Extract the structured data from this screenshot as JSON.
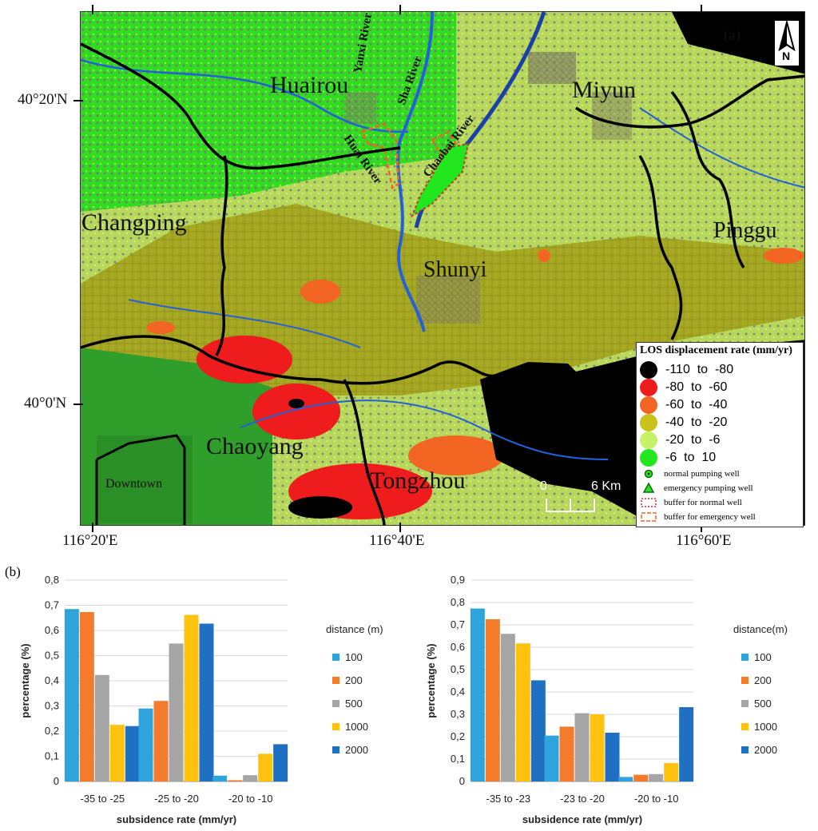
{
  "map": {
    "panel_label": "(a)",
    "north_label": "N",
    "lat_ticks": [
      "40°20'N",
      "40°0'N"
    ],
    "lon_ticks": [
      "116°20'E",
      "116°40'E",
      "116°60'E"
    ],
    "districts": [
      "Huairou",
      "Miyun",
      "Changping",
      "Pinggu",
      "Shunyi",
      "Chaoyang",
      "Tongzhou",
      "Downtown"
    ],
    "rivers": [
      "Yanxi River",
      "Sha River",
      "Huai River",
      "Chaobai River"
    ],
    "scalebar": {
      "start": "0",
      "end": "6 Km"
    },
    "legend": {
      "title": "LOS displacement rate (mm/yr)",
      "classes": [
        {
          "label": "-110  to  -80",
          "color": "#000000"
        },
        {
          "label": "-80  to  -60",
          "color": "#ee1c1c"
        },
        {
          "label": "-60  to  -40",
          "color": "#f26522"
        },
        {
          "label": "-40  to  -20",
          "color": "#c9c21c"
        },
        {
          "label": "-20  to  -6",
          "color": "#c6f26a"
        },
        {
          "label": "-6  to  10",
          "color": "#22e61e"
        }
      ],
      "symbols": [
        "normal pumping well",
        "emergency pumping well",
        "buffer for normal well",
        "buffer for emergency well"
      ]
    }
  },
  "panel_b_label": "(b)",
  "chart_data": [
    {
      "type": "bar",
      "categories": [
        "-35 to -25",
        "-25 to -20",
        "-20 to -10"
      ],
      "xlabel": "subsidence rate (mm/yr)",
      "ylabel": "percentage (%)",
      "ylim": [
        0,
        0.8
      ],
      "yticks": [
        "0",
        "0,1",
        "0,2",
        "0,3",
        "0,4",
        "0,5",
        "0,6",
        "0,7",
        "0,8"
      ],
      "legend_title": "distance (m)",
      "legend_position": "right",
      "grid": true,
      "series": [
        {
          "name": "100",
          "color": "#2ea3dc",
          "values": [
            0.685,
            0.29,
            0.023
          ]
        },
        {
          "name": "200",
          "color": "#f47b2b",
          "values": [
            0.673,
            0.32,
            0.005
          ]
        },
        {
          "name": "500",
          "color": "#a5a5a5",
          "values": [
            0.423,
            0.548,
            0.025
          ]
        },
        {
          "name": "1000",
          "color": "#ffc20e",
          "values": [
            0.225,
            0.662,
            0.11
          ]
        },
        {
          "name": "2000",
          "color": "#1f6fc2",
          "values": [
            0.22,
            0.627,
            0.148
          ]
        }
      ]
    },
    {
      "type": "bar",
      "categories": [
        "-35 to -23",
        "-23 to -20",
        "-20 to -10"
      ],
      "xlabel": "subsidence rate (mm/yr)",
      "ylabel": "percentage (%)",
      "ylim": [
        0,
        0.9
      ],
      "yticks": [
        "0",
        "0,1",
        "0,2",
        "0,3",
        "0,4",
        "0,5",
        "0,6",
        "0,7",
        "0,8",
        "0,9"
      ],
      "legend_title": "distance(m)",
      "legend_position": "right",
      "grid": true,
      "series": [
        {
          "name": "100",
          "color": "#2ea3dc",
          "values": [
            0.773,
            0.205,
            0.02
          ]
        },
        {
          "name": "200",
          "color": "#f47b2b",
          "values": [
            0.725,
            0.245,
            0.03
          ]
        },
        {
          "name": "500",
          "color": "#a5a5a5",
          "values": [
            0.66,
            0.305,
            0.033
          ]
        },
        {
          "name": "1000",
          "color": "#ffc20e",
          "values": [
            0.617,
            0.3,
            0.082
          ]
        },
        {
          "name": "2000",
          "color": "#1f6fc2",
          "values": [
            0.452,
            0.218,
            0.332
          ]
        }
      ]
    }
  ]
}
